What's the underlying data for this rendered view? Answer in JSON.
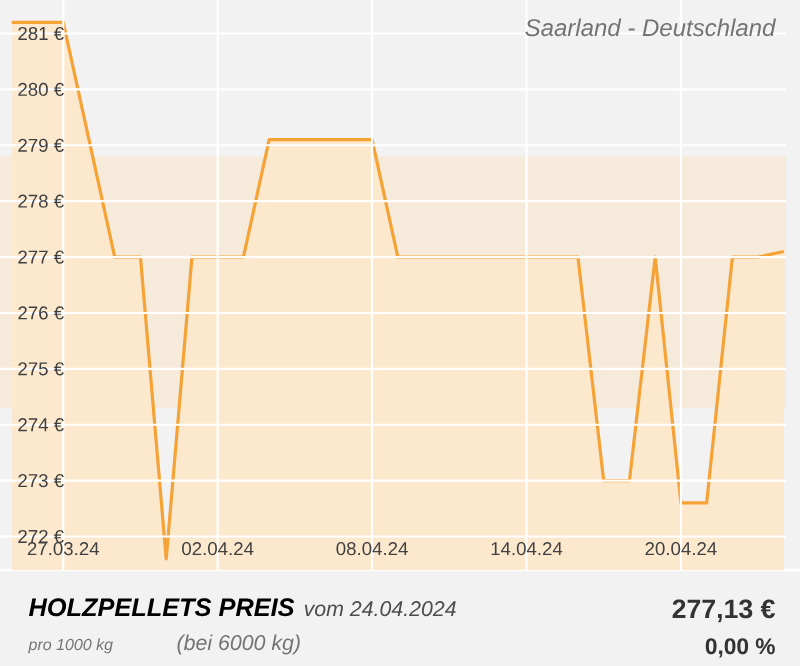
{
  "chart_data": {
    "type": "area",
    "title": "HOLZPELLETS PREIS",
    "subtitle": "Saarland - Deutschland",
    "annotations": [
      "vom 24.04.2024",
      "pro 1000 kg",
      "(bei 6000 kg)",
      "277,13 €",
      "0,00 %"
    ],
    "x": [
      "2024-03-25",
      "2024-03-26",
      "2024-03-27",
      "2024-03-28",
      "2024-03-29",
      "2024-03-30",
      "2024-03-31",
      "2024-04-01",
      "2024-04-02",
      "2024-04-03",
      "2024-04-04",
      "2024-04-05",
      "2024-04-06",
      "2024-04-07",
      "2024-04-08",
      "2024-04-09",
      "2024-04-10",
      "2024-04-11",
      "2024-04-12",
      "2024-04-13",
      "2024-04-14",
      "2024-04-15",
      "2024-04-16",
      "2024-04-17",
      "2024-04-18",
      "2024-04-19",
      "2024-04-20",
      "2024-04-21",
      "2024-04-22",
      "2024-04-23",
      "2024-04-24"
    ],
    "series": [
      {
        "color": "#f5a236",
        "values": [
          281.2,
          281.2,
          281.2,
          279.1,
          277.0,
          277.0,
          271.6,
          277.0,
          277.0,
          277.0,
          279.1,
          279.1,
          279.1,
          279.1,
          279.1,
          277.0,
          277.0,
          277.0,
          277.0,
          277.0,
          277.0,
          277.0,
          277.0,
          273.0,
          273.0,
          277.0,
          272.6,
          272.6,
          277.0,
          277.0,
          277.1
        ]
      }
    ],
    "xlim": [
      "2024-03-24T13:00",
      "2024-04-24T02:00"
    ],
    "xticks": [
      {
        "value": "2024-03-27",
        "label": "27.03.24"
      },
      {
        "value": "2024-04-02",
        "label": "02.04.24"
      },
      {
        "value": "2024-04-08",
        "label": "08.04.24"
      },
      {
        "value": "2024-04-14",
        "label": "14.04.24"
      },
      {
        "value": "2024-04-20",
        "label": "20.04.24"
      }
    ],
    "ylim": [
      271.4,
      281.6
    ],
    "yticks": [
      {
        "value": 272,
        "label": "272 €"
      },
      {
        "value": 273,
        "label": "273 €"
      },
      {
        "value": 274,
        "label": "274 €"
      },
      {
        "value": 275,
        "label": "275 €"
      },
      {
        "value": 276,
        "label": "276 €"
      },
      {
        "value": 277,
        "label": "277 €"
      },
      {
        "value": 278,
        "label": "278 €"
      },
      {
        "value": 279,
        "label": "279 €"
      },
      {
        "value": 280,
        "label": "280 €"
      },
      {
        "value": 281,
        "label": "281 €"
      }
    ],
    "bands": [
      {
        "axis": "y",
        "from": 274.3,
        "to": 278.8,
        "color": "#f6ebda"
      }
    ],
    "grid": true
  }
}
